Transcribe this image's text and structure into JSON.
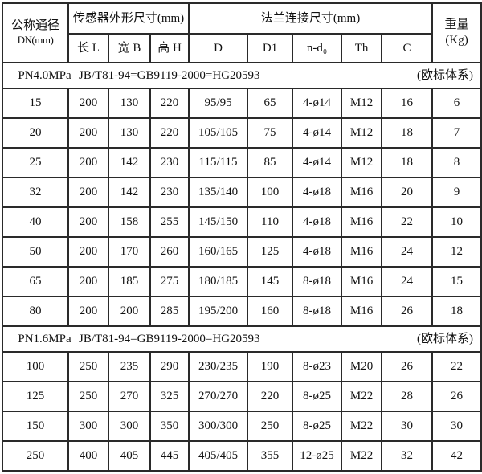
{
  "table": {
    "header": {
      "dn_line1": "公称通径",
      "dn_line2": "DN(mm)",
      "sensor_group": "传感器外形尺寸(mm)",
      "flange_group": "法兰连接尺寸(mm)",
      "weight_line1": "重量",
      "weight_line2": "(Kg)",
      "sub_columns": [
        "长 L",
        "宽 B",
        "高 H",
        "D",
        "D1",
        "n-d₀",
        "Th",
        "C"
      ]
    },
    "sections": [
      {
        "pn": "PN4.0MPa",
        "standard": "JB/T81-94=GB9119-2000=HG20593",
        "note": "(欧标体系)",
        "rows": [
          [
            "15",
            "200",
            "130",
            "220",
            "95/95",
            "65",
            "4-ø14",
            "M12",
            "16",
            "6"
          ],
          [
            "20",
            "200",
            "130",
            "220",
            "105/105",
            "75",
            "4-ø14",
            "M12",
            "18",
            "7"
          ],
          [
            "25",
            "200",
            "142",
            "230",
            "115/115",
            "85",
            "4-ø14",
            "M12",
            "18",
            "8"
          ],
          [
            "32",
            "200",
            "142",
            "230",
            "135/140",
            "100",
            "4-ø18",
            "M16",
            "20",
            "9"
          ],
          [
            "40",
            "200",
            "158",
            "255",
            "145/150",
            "110",
            "4-ø18",
            "M16",
            "22",
            "10"
          ],
          [
            "50",
            "200",
            "170",
            "260",
            "160/165",
            "125",
            "4-ø18",
            "M16",
            "24",
            "12"
          ],
          [
            "65",
            "200",
            "185",
            "275",
            "180/185",
            "145",
            "8-ø18",
            "M16",
            "24",
            "15"
          ],
          [
            "80",
            "200",
            "200",
            "285",
            "195/200",
            "160",
            "8-ø18",
            "M16",
            "26",
            "18"
          ]
        ]
      },
      {
        "pn": "PN1.6MPa",
        "standard": "JB/T81-94=GB9119-2000=HG20593",
        "note": "(欧标体系)",
        "rows": [
          [
            "100",
            "250",
            "235",
            "290",
            "230/235",
            "190",
            "8-ø23",
            "M20",
            "26",
            "22"
          ],
          [
            "125",
            "250",
            "270",
            "325",
            "270/270",
            "220",
            "8-ø25",
            "M22",
            "28",
            "26"
          ],
          [
            "150",
            "300",
            "300",
            "350",
            "300/300",
            "250",
            "8-ø25",
            "M22",
            "30",
            "30"
          ],
          [
            "250",
            "400",
            "405",
            "445",
            "405/405",
            "355",
            "12-ø25",
            "M22",
            "32",
            "42"
          ]
        ]
      }
    ]
  }
}
